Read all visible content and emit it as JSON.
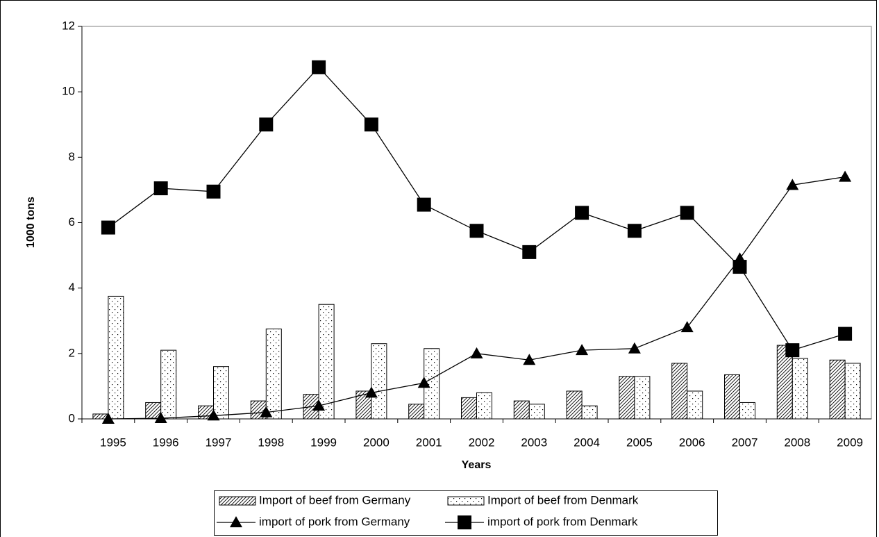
{
  "chart_data": {
    "type": "bar",
    "x_label": "Years",
    "y_label": "1000 tons",
    "categories": [
      "1995",
      "1996",
      "1997",
      "1998",
      "1999",
      "2000",
      "2001",
      "2002",
      "2003",
      "2004",
      "2005",
      "2006",
      "2007",
      "2008",
      "2009"
    ],
    "series": [
      {
        "name": "Import of beef from Germany",
        "type": "bar",
        "pattern": "hatch",
        "color": "#000000",
        "values": [
          0.15,
          0.5,
          0.4,
          0.55,
          0.75,
          0.85,
          0.45,
          0.65,
          0.55,
          0.85,
          1.3,
          1.7,
          1.35,
          2.25,
          1.8
        ]
      },
      {
        "name": "Import of beef from Denmark",
        "type": "bar",
        "pattern": "dots",
        "color": "#000000",
        "values": [
          3.75,
          2.1,
          1.6,
          2.75,
          3.5,
          2.3,
          2.15,
          0.8,
          0.45,
          0.4,
          1.3,
          0.85,
          0.5,
          1.85,
          1.7
        ]
      },
      {
        "name": "import of pork from Germany",
        "type": "line",
        "marker": "triangle",
        "color": "#000000",
        "values": [
          0,
          0.02,
          0.1,
          0.2,
          0.4,
          0.8,
          1.1,
          2.0,
          1.8,
          2.1,
          2.15,
          2.8,
          4.9,
          7.15,
          7.4
        ]
      },
      {
        "name": "import of pork from Denmark",
        "type": "line",
        "marker": "square",
        "color": "#000000",
        "values": [
          5.85,
          7.05,
          6.95,
          9.0,
          10.75,
          9.0,
          6.55,
          5.75,
          5.1,
          6.3,
          5.75,
          6.3,
          4.65,
          2.1,
          2.6
        ]
      }
    ],
    "ylim": [
      0,
      12
    ],
    "yticks": [
      0,
      2,
      4,
      6,
      8,
      10,
      12
    ],
    "grid": false
  }
}
